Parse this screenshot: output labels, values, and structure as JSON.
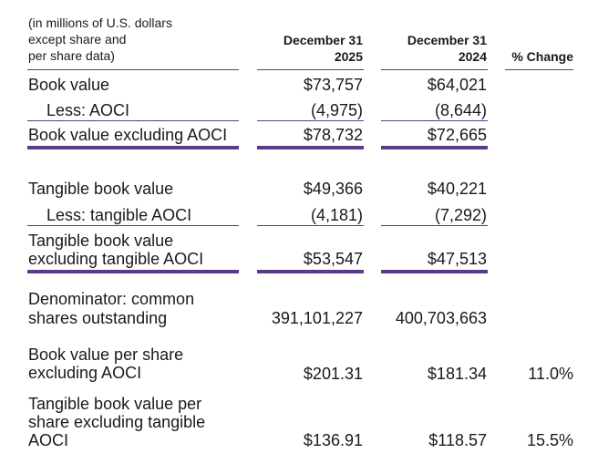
{
  "header": {
    "units_note": [
      "(in millions of U.S. dollars",
      "except share and",
      "per share data)"
    ],
    "col_2025": [
      "December 31",
      "2025"
    ],
    "col_2024": [
      "December 31",
      "2024"
    ],
    "col_change": "% Change"
  },
  "rows": {
    "book_value": {
      "label": "Book value",
      "v2025": "$73,757",
      "v2024": "$64,021"
    },
    "less_aoci": {
      "label": "Less: AOCI",
      "v2025": "(4,975)",
      "v2024": "(8,644)"
    },
    "bv_ex_aoci": {
      "label": "Book value excluding AOCI",
      "v2025": "$78,732",
      "v2024": "$72,665"
    },
    "tangible_bv": {
      "label": "Tangible book value",
      "v2025": "$49,366",
      "v2024": "$40,221"
    },
    "less_tangible_aoci": {
      "label": "Less: tangible AOCI",
      "v2025": "(4,181)",
      "v2024": "(7,292)"
    },
    "tbv_ex_aoci": {
      "label": [
        "Tangible book value",
        "excluding tangible AOCI"
      ],
      "v2025": "$53,547",
      "v2024": "$47,513"
    },
    "denominator": {
      "label": [
        "Denominator: common",
        "shares outstanding"
      ],
      "v2025": "391,101,227",
      "v2024": "400,703,663"
    },
    "bvps": {
      "label": [
        "Book value per share",
        "excluding AOCI"
      ],
      "v2025": "$201.31",
      "v2024": "$181.34",
      "change": "11.0%"
    },
    "tbvps": {
      "label": [
        "Tangible book value per",
        "share excluding tangible",
        "AOCI"
      ],
      "v2025": "$136.91",
      "v2024": "$118.57",
      "change": "15.5%"
    }
  }
}
